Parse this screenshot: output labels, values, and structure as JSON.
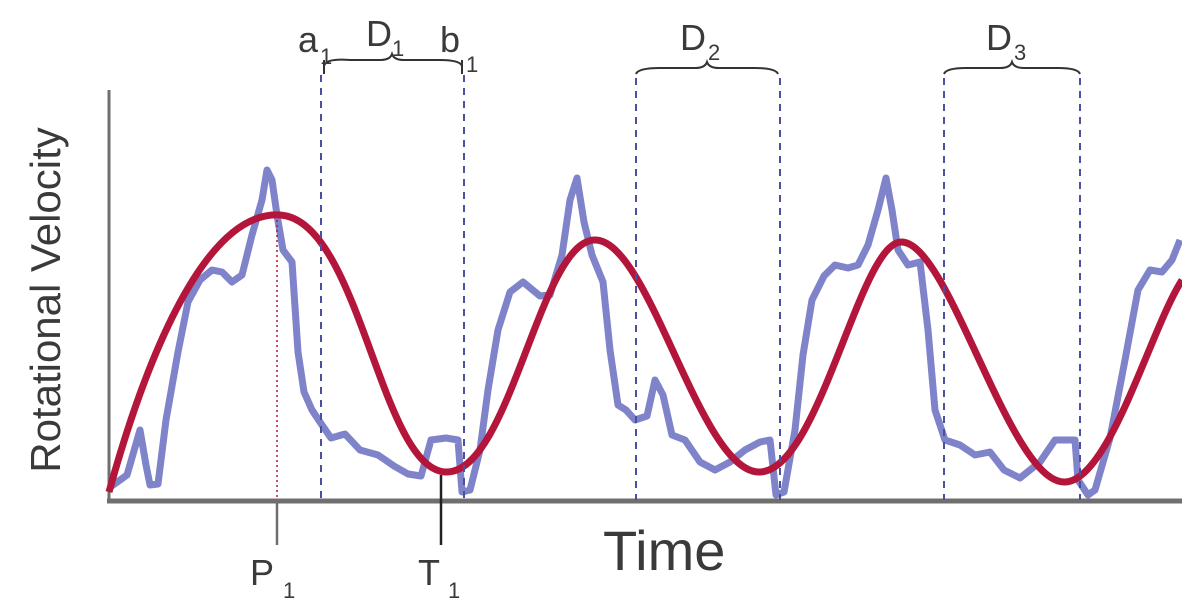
{
  "figure": {
    "y_axis_label": "Rotational Velocity",
    "x_axis_label": "Time",
    "markers": {
      "a": "a",
      "a_sub": "1",
      "b": "b",
      "b_sub": "1",
      "p": "P",
      "p_sub": "1",
      "t": "T",
      "t_sub": "1"
    },
    "durations": [
      {
        "label": "D",
        "sub": "1"
      },
      {
        "label": "D",
        "sub": "2"
      },
      {
        "label": "D",
        "sub": "3"
      }
    ],
    "colors": {
      "raw_signal": "#7f83c9",
      "fit_curve": "#b3163a",
      "axis": "#6f6f6f",
      "text": "#3a3a3a",
      "dashed": "#4a4f9e"
    }
  }
}
